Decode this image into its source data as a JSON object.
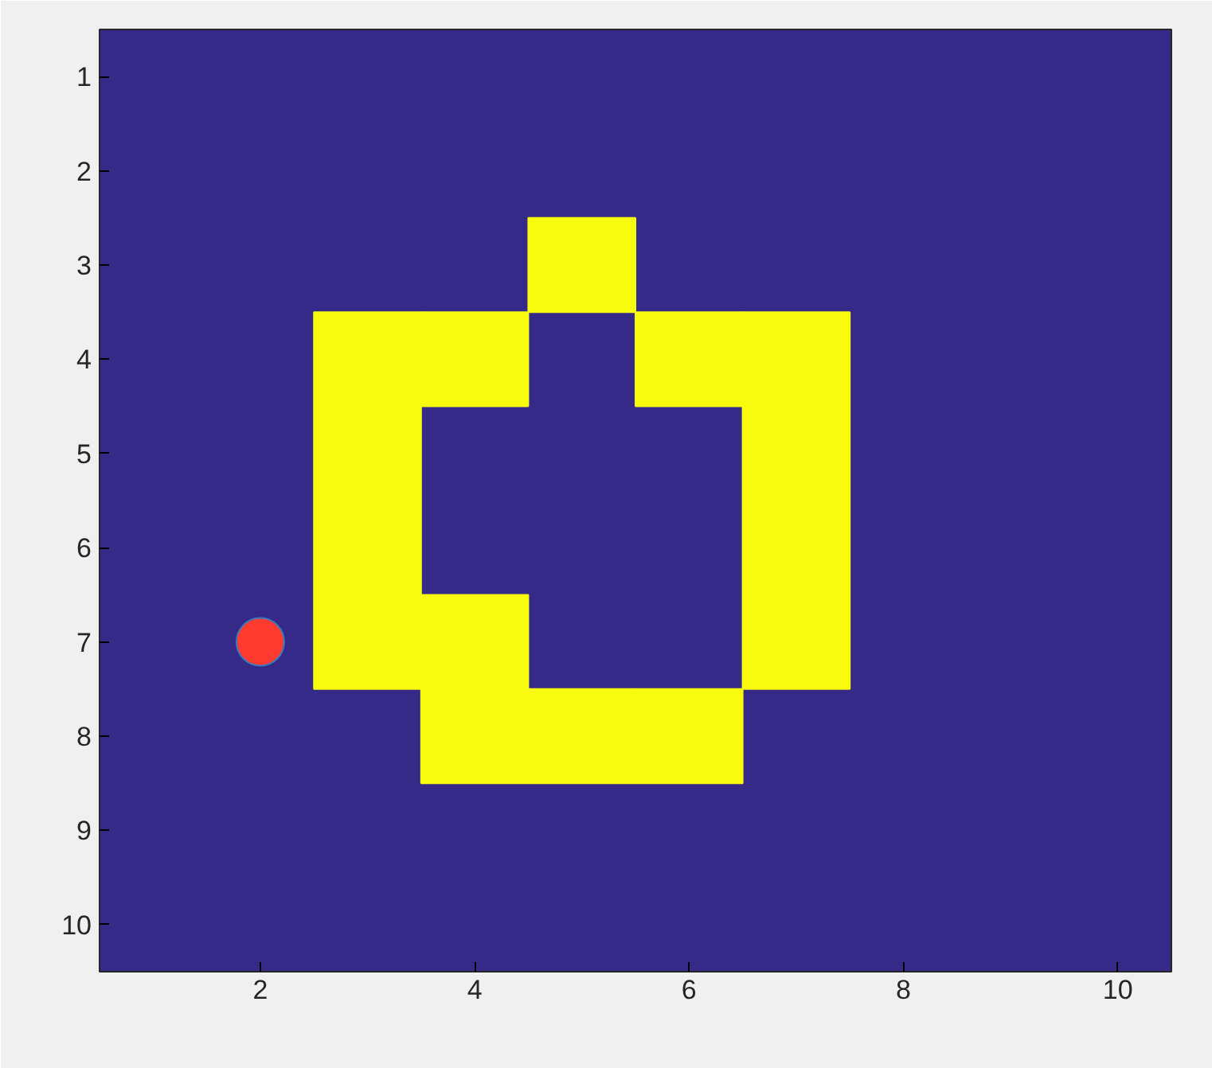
{
  "chart_data": {
    "type": "bar",
    "xlim": [
      0.5,
      10.5
    ],
    "ylim": [
      10.5,
      0.5
    ],
    "xticks": [
      2,
      4,
      6,
      8,
      10
    ],
    "yticks": [
      1,
      2,
      3,
      4,
      5,
      6,
      7,
      8,
      9,
      10
    ],
    "series": [
      {
        "color": "#f9fb0e",
        "x": [
          3,
          4,
          5,
          6,
          7
        ],
        "base": [
          3.5,
          3.5,
          2.5,
          3.5,
          3.5
        ],
        "values": [
          4,
          1,
          1,
          1,
          4
        ]
      },
      {
        "color": "#f9fb0e",
        "x": [
          4,
          5,
          6
        ],
        "base": [
          6.5,
          7.5,
          7.5
        ],
        "values": [
          2,
          1,
          1
        ]
      },
      {
        "type": "scatter",
        "marker": "circle",
        "color": "#ff3b30",
        "x": [
          2
        ],
        "values": [
          7
        ]
      }
    ]
  }
}
